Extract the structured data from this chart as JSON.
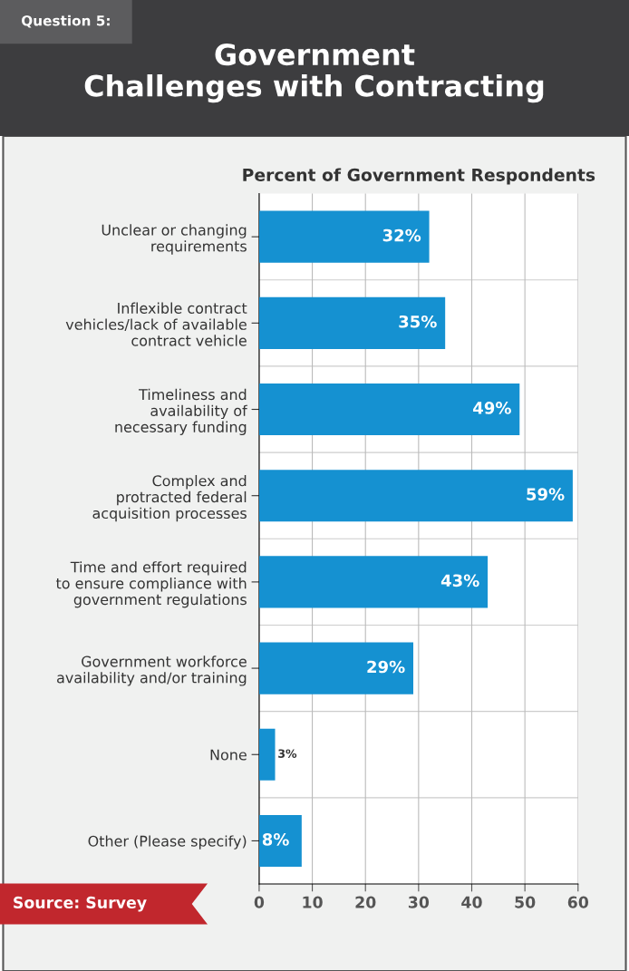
{
  "chart_data": {
    "type": "bar",
    "orientation": "horizontal",
    "title": "Government\nChallenges with Contracting",
    "xlabel": "Percent of Government Respondents",
    "categories": [
      "Unclear or changing\nrequirements",
      "Inflexible contract\nvehicles/lack of available\ncontract vehicle",
      "Timeliness and\navailability of\nnecessary funding",
      "Complex and\nprotracted federal\nacquisition processes",
      "Time and effort required\nto ensure compliance with\ngovernment regulations",
      "Government workforce\navailability and/or training",
      "None",
      "Other (Please specify)"
    ],
    "values": [
      32,
      35,
      49,
      59,
      43,
      29,
      3,
      8
    ],
    "value_labels": [
      "32%",
      "35%",
      "49%",
      "59%",
      "43%",
      "29%",
      "3%",
      "8%"
    ],
    "color": "#1591d1",
    "xlim": [
      0,
      60
    ],
    "xticks": [
      0,
      10,
      20,
      30,
      40,
      50,
      60
    ],
    "grid": "x",
    "annotations": [
      "Question 5:",
      "Source: Survey"
    ]
  }
}
